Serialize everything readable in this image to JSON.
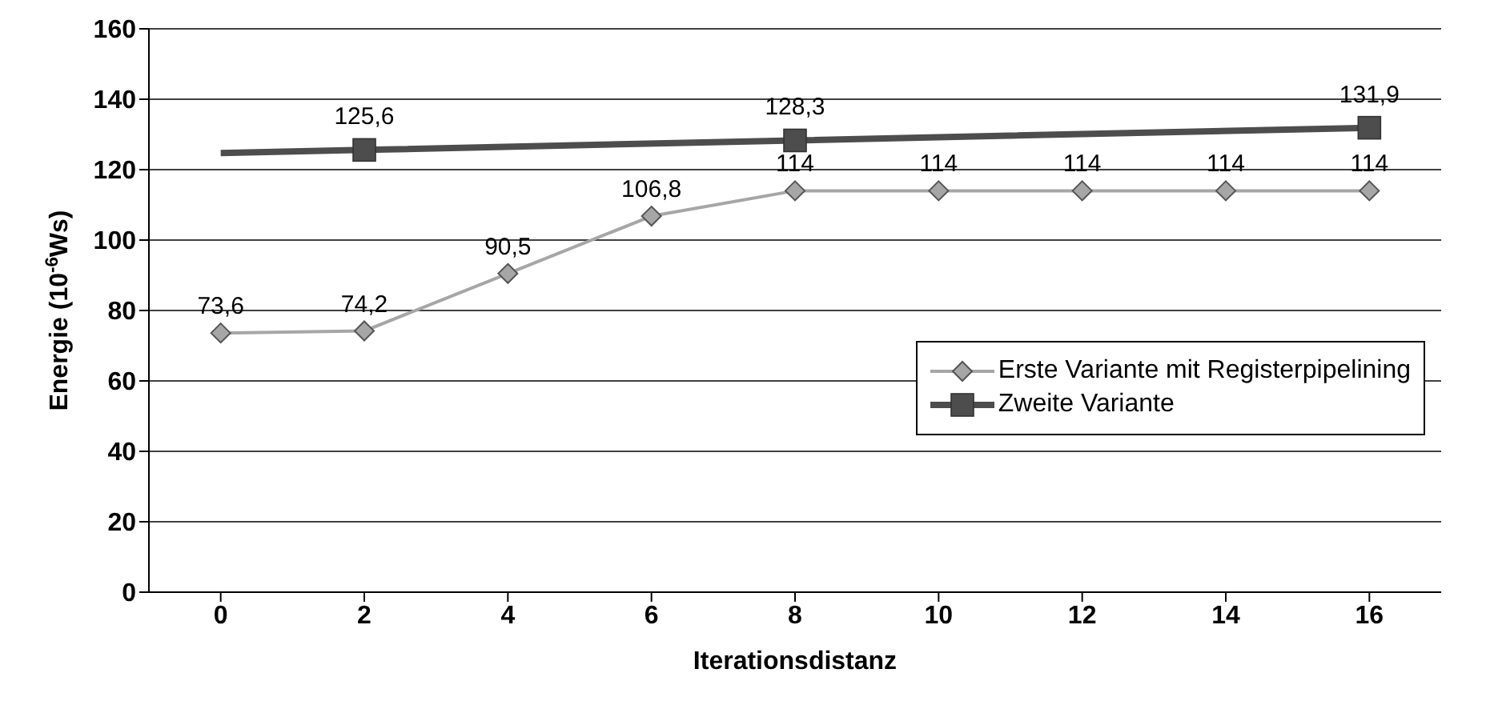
{
  "chart_data": {
    "type": "line",
    "xlabel": "Iterationsdistanz",
    "ylabel": "Energie (10$^{-6}$Ws)",
    "xlim": [
      -1,
      17
    ],
    "xticks": [
      0,
      2,
      4,
      6,
      8,
      10,
      12,
      14,
      16
    ],
    "ylim": [
      0,
      160
    ],
    "yticks": [
      0,
      20,
      40,
      60,
      80,
      100,
      120,
      140,
      160
    ],
    "grid": "y",
    "legend": "right",
    "line_style": "solid",
    "series": [
      {
        "name": "Erste Variante mit Registerpipelining",
        "color": "#a6a6a6",
        "marker": "diamond",
        "x": [
          0,
          2,
          4,
          6,
          8,
          10,
          12,
          14,
          16
        ],
        "values": [
          73.6,
          74.2,
          90.5,
          106.8,
          114,
          114,
          114,
          114,
          114
        ],
        "value_labels": [
          "73,6",
          "74,2",
          "90,5",
          "106,8",
          "114",
          "114",
          "114",
          "114",
          "114"
        ]
      },
      {
        "name": "Zweite Variante",
        "color": "#4d4d4d",
        "marker": "square",
        "x": [
          0,
          2,
          8,
          16
        ],
        "values": [
          124.7,
          125.6,
          128.3,
          131.9
        ],
        "value_labels": [
          null,
          "125,6",
          "128,3",
          "131,9"
        ]
      }
    ]
  }
}
